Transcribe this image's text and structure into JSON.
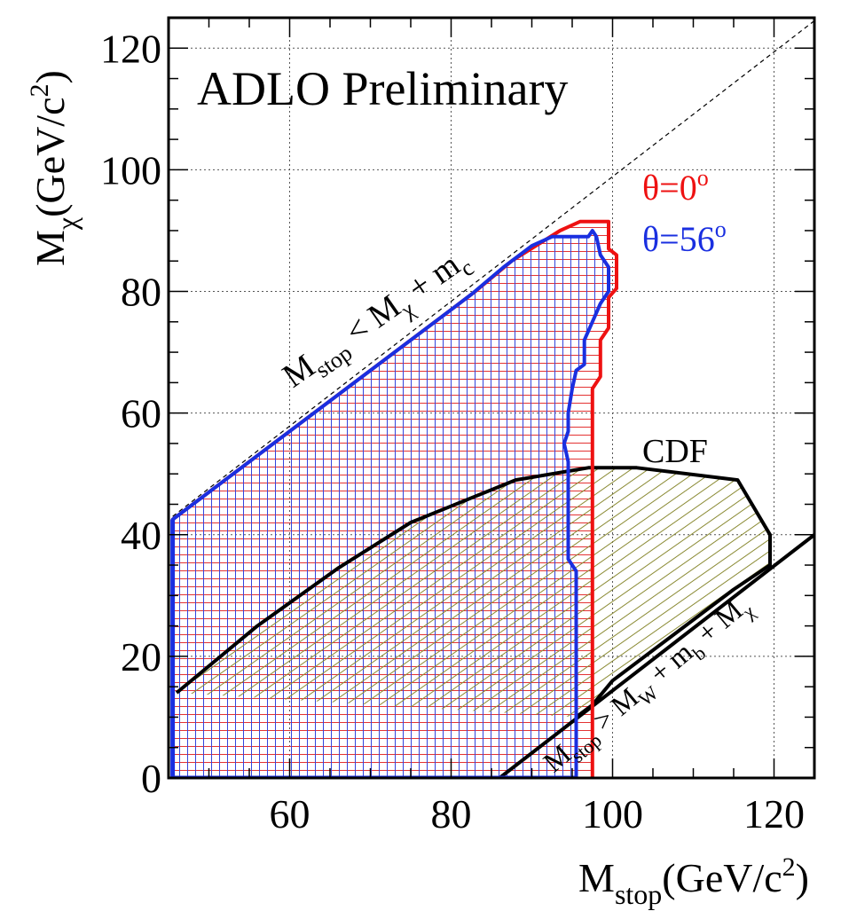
{
  "chart_data": {
    "type": "area",
    "title": "ADLO Preliminary",
    "xlabel": {
      "base": "M",
      "sub": "stop",
      "unit": "(GeV/c",
      "sup": "2",
      "close": ")"
    },
    "ylabel": {
      "base": "M",
      "sub": "χ",
      "unit": "(GeV/c",
      "sup": "2",
      "close": ")"
    },
    "xlim": [
      45,
      125
    ],
    "ylim": [
      0,
      125
    ],
    "xticks": [
      60,
      80,
      100,
      120
    ],
    "yticks": [
      0,
      20,
      40,
      60,
      80,
      100,
      120
    ],
    "grid": true,
    "legend_position": "top-right",
    "legend": [
      {
        "label": "θ=0",
        "sup": "o",
        "color": "#ee1111"
      },
      {
        "label": "θ=56",
        "sup": "o",
        "color": "#1a2fe0"
      }
    ],
    "series": [
      {
        "name": "θ=0°",
        "color": "#ee1111",
        "hatch": "horizontal",
        "points": [
          [
            45.5,
            0
          ],
          [
            45.5,
            42.5
          ],
          [
            83,
            80
          ],
          [
            87.5,
            85
          ],
          [
            93.5,
            90
          ],
          [
            96,
            91.5
          ],
          [
            99.5,
            91.5
          ],
          [
            99.5,
            87
          ],
          [
            100.5,
            86
          ],
          [
            100.5,
            80.5
          ],
          [
            99.5,
            79
          ],
          [
            99.5,
            74
          ],
          [
            98.5,
            72
          ],
          [
            98.5,
            66
          ],
          [
            97.5,
            64
          ],
          [
            97.5,
            12
          ],
          [
            97.5,
            0
          ]
        ]
      },
      {
        "name": "θ=56°",
        "color": "#1a2fe0",
        "hatch": "vertical",
        "points": [
          [
            45.5,
            0
          ],
          [
            45.5,
            42.5
          ],
          [
            82.5,
            79.5
          ],
          [
            86.5,
            84
          ],
          [
            90,
            87.5
          ],
          [
            92.5,
            89
          ],
          [
            97,
            89
          ],
          [
            97.5,
            90
          ],
          [
            98,
            89
          ],
          [
            98.5,
            86
          ],
          [
            99.5,
            84
          ],
          [
            99.5,
            80
          ],
          [
            98.5,
            78
          ],
          [
            97.5,
            75
          ],
          [
            96.5,
            72
          ],
          [
            96.5,
            68
          ],
          [
            95.5,
            67
          ],
          [
            95,
            64
          ],
          [
            94.5,
            60
          ],
          [
            94.5,
            57
          ],
          [
            94,
            55
          ],
          [
            94.5,
            52
          ],
          [
            94.5,
            36
          ],
          [
            95.5,
            34
          ],
          [
            95.5,
            10
          ],
          [
            95.5,
            0
          ]
        ]
      },
      {
        "name": "CDF",
        "color": "#000000",
        "hatch": "diagonal",
        "points": [
          [
            46,
            14
          ],
          [
            56,
            25
          ],
          [
            66,
            34.5
          ],
          [
            75,
            42
          ],
          [
            88,
            49
          ],
          [
            97,
            51
          ],
          [
            103,
            51
          ],
          [
            115.5,
            49
          ],
          [
            119.5,
            40
          ],
          [
            119.5,
            35
          ],
          [
            115,
            31
          ],
          [
            100,
            16
          ],
          [
            97.5,
            12
          ],
          [
            95.5,
            10
          ]
        ]
      }
    ],
    "lines": [
      {
        "name": "kinematic-limit-upper",
        "style": "dashed",
        "points": [
          [
            45.5,
            43
          ],
          [
            125,
            124.5
          ]
        ]
      },
      {
        "name": "kinematic-limit-lower",
        "style": "solid",
        "points": [
          [
            86,
            0
          ],
          [
            125,
            40
          ]
        ]
      }
    ],
    "annotations": {
      "cdf": "CDF",
      "upper_limit": {
        "a": "M",
        "a_sub": "stop",
        "b": " < M",
        "b_sub": "χ",
        "c": " + m",
        "c_sub": "c"
      },
      "lower_limit": {
        "a": "M",
        "a_sub": "stop",
        "b": " > M",
        "b_sub": "W",
        "c": " + m",
        "c_sub": "b",
        "d": " + M",
        "d_sub": "χ"
      }
    }
  }
}
